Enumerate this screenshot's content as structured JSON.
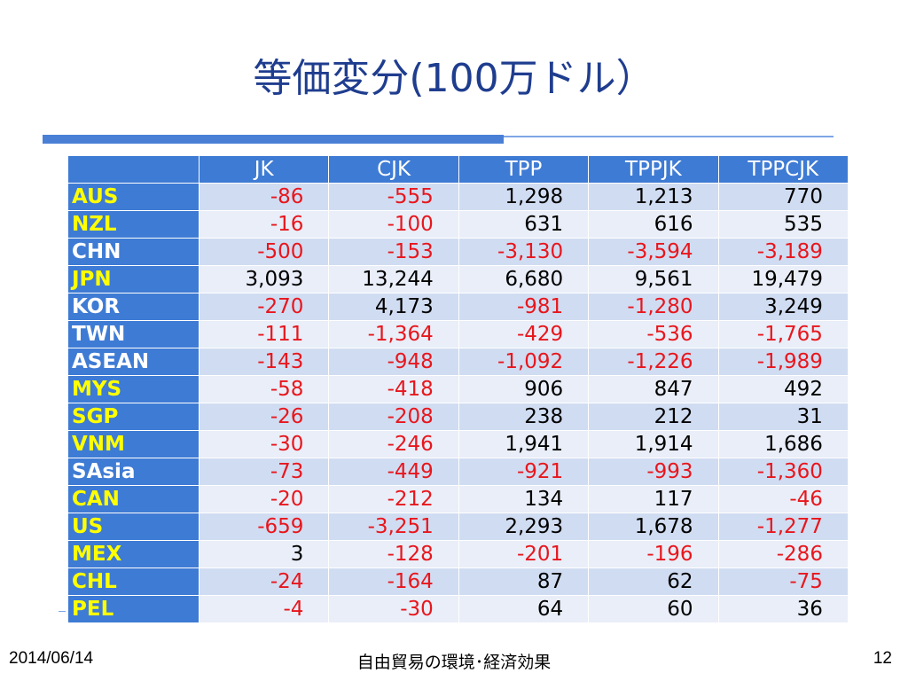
{
  "slide": {
    "title": "等価変分(100万ドル）",
    "footer_date": "2014/06/14",
    "footer_center": "自由貿易の環境･経済効果",
    "page_number": "12"
  },
  "colors": {
    "header_bg": "#3e7bd4",
    "highlight_label": "#ffff00",
    "negative": "#e8161d",
    "row_odd": "#d0dcf1",
    "row_even": "#e9eef8"
  },
  "table": {
    "columns": [
      "JK",
      "CJK",
      "TPP",
      "TPPJK",
      "TPPCJK"
    ],
    "rows": [
      {
        "label": "AUS",
        "highlight": true,
        "values": [
          "-86",
          "-555",
          "1,298",
          "1,213",
          "770"
        ]
      },
      {
        "label": "NZL",
        "highlight": true,
        "values": [
          "-16",
          "-100",
          "631",
          "616",
          "535"
        ]
      },
      {
        "label": "CHN",
        "highlight": false,
        "values": [
          "-500",
          "-153",
          "-3,130",
          "-3,594",
          "-3,189"
        ]
      },
      {
        "label": "JPN",
        "highlight": true,
        "values": [
          "3,093",
          "13,244",
          "6,680",
          "9,561",
          "19,479"
        ]
      },
      {
        "label": "KOR",
        "highlight": false,
        "values": [
          "-270",
          "4,173",
          "-981",
          "-1,280",
          "3,249"
        ]
      },
      {
        "label": "TWN",
        "highlight": false,
        "values": [
          "-111",
          "-1,364",
          "-429",
          "-536",
          "-1,765"
        ]
      },
      {
        "label": "ASEAN",
        "highlight": false,
        "values": [
          "-143",
          "-948",
          "-1,092",
          "-1,226",
          "-1,989"
        ]
      },
      {
        "label": "MYS",
        "highlight": true,
        "values": [
          "-58",
          "-418",
          "906",
          "847",
          "492"
        ]
      },
      {
        "label": "SGP",
        "highlight": true,
        "values": [
          "-26",
          "-208",
          "238",
          "212",
          "31"
        ]
      },
      {
        "label": "VNM",
        "highlight": true,
        "values": [
          "-30",
          "-246",
          "1,941",
          "1,914",
          "1,686"
        ]
      },
      {
        "label": "SAsia",
        "highlight": false,
        "values": [
          "-73",
          "-449",
          "-921",
          "-993",
          "-1,360"
        ]
      },
      {
        "label": "CAN",
        "highlight": true,
        "values": [
          "-20",
          "-212",
          "134",
          "117",
          "-46"
        ]
      },
      {
        "label": "US",
        "highlight": true,
        "values": [
          "-659",
          "-3,251",
          "2,293",
          "1,678",
          "-1,277"
        ]
      },
      {
        "label": "MEX",
        "highlight": true,
        "values": [
          "3",
          "-128",
          "-201",
          "-196",
          "-286"
        ]
      },
      {
        "label": "CHL",
        "highlight": true,
        "values": [
          "-24",
          "-164",
          "87",
          "62",
          "-75"
        ]
      },
      {
        "label": "PEL",
        "highlight": true,
        "values": [
          "-4",
          "-30",
          "64",
          "60",
          "36"
        ]
      }
    ]
  }
}
